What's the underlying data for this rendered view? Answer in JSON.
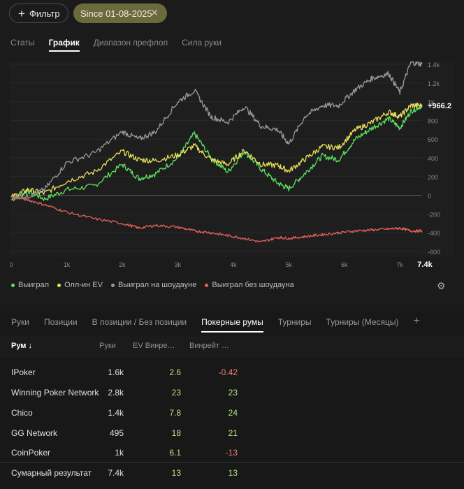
{
  "filters": {
    "filter_label": "Фильтр",
    "since_label": "Since 01-08-2025"
  },
  "stats_tabs": [
    "Статы",
    "График",
    "Диапазон префлоп",
    "Сила руки"
  ],
  "stats_tabs_active": 1,
  "chart_data": {
    "type": "line",
    "x_range": [
      0,
      7400
    ],
    "x_ticks": [
      "0",
      "1k",
      "2k",
      "3k",
      "4k",
      "5k",
      "6k",
      "7k"
    ],
    "x_last_label": "7.4k",
    "y_range": [
      -600,
      1400
    ],
    "y_ticks": [
      "1.4k",
      "1.2k",
      "1k",
      "800",
      "600",
      "400",
      "200",
      "0",
      "-200",
      "-400",
      "-600"
    ],
    "final_value_label": "+966.2",
    "grid": true,
    "series": [
      {
        "name": "Выиграл",
        "color": "#5ee35e",
        "points": [
          [
            0,
            -50
          ],
          [
            300,
            50
          ],
          [
            600,
            -40
          ],
          [
            1000,
            60
          ],
          [
            1500,
            100
          ],
          [
            2000,
            330
          ],
          [
            2300,
            180
          ],
          [
            2600,
            230
          ],
          [
            3000,
            400
          ],
          [
            3300,
            660
          ],
          [
            3600,
            400
          ],
          [
            3900,
            250
          ],
          [
            4200,
            470
          ],
          [
            4500,
            280
          ],
          [
            4800,
            130
          ],
          [
            5000,
            70
          ],
          [
            5300,
            240
          ],
          [
            5600,
            420
          ],
          [
            5900,
            380
          ],
          [
            6200,
            600
          ],
          [
            6500,
            720
          ],
          [
            6800,
            820
          ],
          [
            7000,
            720
          ],
          [
            7200,
            900
          ],
          [
            7400,
            960
          ]
        ]
      },
      {
        "name": "Олл-ин EV",
        "color": "#e8df5a",
        "points": [
          [
            0,
            -20
          ],
          [
            300,
            60
          ],
          [
            600,
            20
          ],
          [
            1000,
            150
          ],
          [
            1500,
            250
          ],
          [
            2000,
            470
          ],
          [
            2300,
            380
          ],
          [
            2600,
            370
          ],
          [
            3000,
            430
          ],
          [
            3300,
            530
          ],
          [
            3600,
            380
          ],
          [
            3900,
            330
          ],
          [
            4200,
            480
          ],
          [
            4500,
            330
          ],
          [
            4800,
            320
          ],
          [
            5000,
            260
          ],
          [
            5300,
            390
          ],
          [
            5600,
            520
          ],
          [
            5900,
            510
          ],
          [
            6200,
            700
          ],
          [
            6500,
            780
          ],
          [
            6800,
            890
          ],
          [
            7000,
            840
          ],
          [
            7200,
            960
          ],
          [
            7400,
            960
          ]
        ]
      },
      {
        "name": "Выиграл на шоудауне",
        "color": "#9a9a9a",
        "points": [
          [
            0,
            -20
          ],
          [
            300,
            -10
          ],
          [
            600,
            60
          ],
          [
            1000,
            350
          ],
          [
            1500,
            450
          ],
          [
            2000,
            680
          ],
          [
            2300,
            600
          ],
          [
            2600,
            680
          ],
          [
            3000,
            1000
          ],
          [
            3300,
            1120
          ],
          [
            3600,
            840
          ],
          [
            3900,
            780
          ],
          [
            4200,
            950
          ],
          [
            4500,
            740
          ],
          [
            4800,
            700
          ],
          [
            5000,
            550
          ],
          [
            5300,
            850
          ],
          [
            5600,
            960
          ],
          [
            5900,
            960
          ],
          [
            6200,
            1130
          ],
          [
            6500,
            1250
          ],
          [
            6800,
            1300
          ],
          [
            7000,
            1100
          ],
          [
            7200,
            1420
          ],
          [
            7400,
            1400
          ]
        ]
      },
      {
        "name": "Выиграл без шоудауна",
        "color": "#e8625a",
        "points": [
          [
            0,
            -10
          ],
          [
            300,
            -50
          ],
          [
            600,
            -100
          ],
          [
            1000,
            -180
          ],
          [
            1500,
            -250
          ],
          [
            2000,
            -300
          ],
          [
            2300,
            -350
          ],
          [
            2600,
            -320
          ],
          [
            3000,
            -340
          ],
          [
            3300,
            -380
          ],
          [
            3600,
            -400
          ],
          [
            3900,
            -430
          ],
          [
            4200,
            -460
          ],
          [
            4500,
            -500
          ],
          [
            4800,
            -450
          ],
          [
            5000,
            -460
          ],
          [
            5300,
            -440
          ],
          [
            5600,
            -420
          ],
          [
            5900,
            -400
          ],
          [
            6200,
            -380
          ],
          [
            6500,
            -370
          ],
          [
            6800,
            -360
          ],
          [
            7000,
            -350
          ],
          [
            7200,
            -380
          ],
          [
            7400,
            -380
          ]
        ]
      }
    ]
  },
  "legend": [
    "Выиграл",
    "Олл-ин EV",
    "Выиграл на шоудауне",
    "Выиграл без шоудауна"
  ],
  "table_tabs": [
    "Руки",
    "Позиции",
    "В позиции / Без позиции",
    "Покерные румы",
    "Турниры",
    "Турниры (Месяцы)"
  ],
  "table_tabs_active": 3,
  "table": {
    "headers": {
      "room": "Рум ↓",
      "hands": "Руки",
      "ev": "EV Винре…",
      "sd": "Винрейт …"
    },
    "rows": [
      {
        "room": "IPoker",
        "hands": "1.6k",
        "ev": "2.6",
        "sd": "-0.42"
      },
      {
        "room": "Winning Poker Network",
        "hands": "2.8k",
        "ev": "23",
        "sd": "23"
      },
      {
        "room": "Chico",
        "hands": "1.4k",
        "ev": "7.8",
        "sd": "24"
      },
      {
        "room": "GG Network",
        "hands": "495",
        "ev": "18",
        "sd": "21"
      },
      {
        "room": "CoinPoker",
        "hands": "1k",
        "ev": "6.1",
        "sd": "-13"
      }
    ],
    "total": {
      "room": "Сумарный результат",
      "hands": "7.4k",
      "ev": "13",
      "sd": "13"
    }
  },
  "colors": {
    "positive": "#b6e38a",
    "negative": "#f08070",
    "accent_chip": "#6b6a3c"
  },
  "icons": {
    "plus": "plus-icon",
    "close": "close-icon",
    "settings": "gear-icon",
    "add_tab": "plus-icon"
  }
}
